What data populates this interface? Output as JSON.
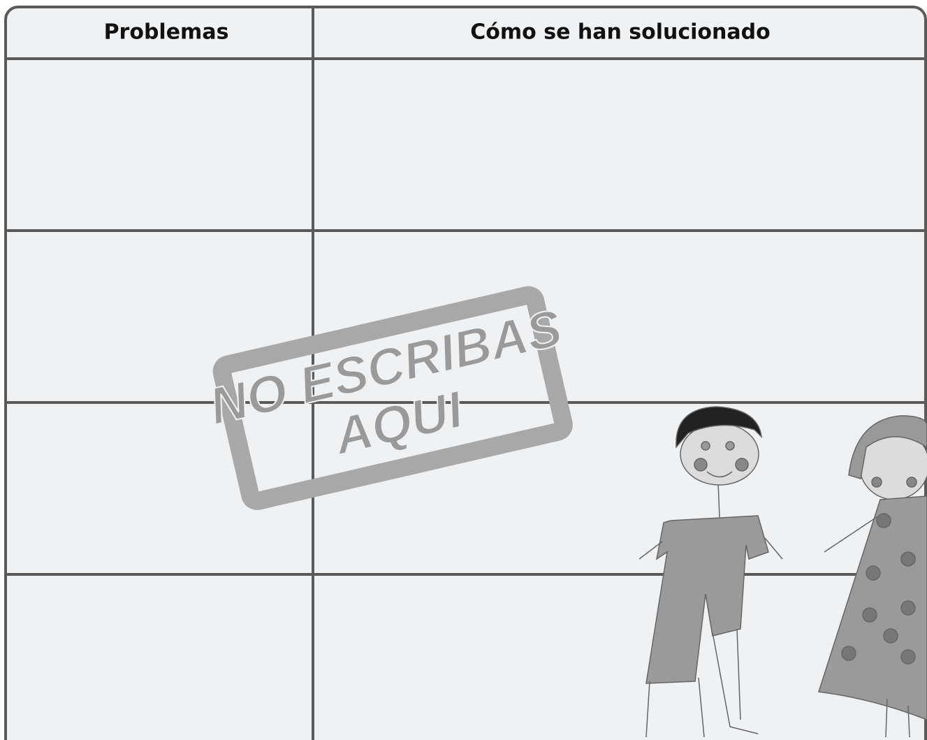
{
  "table": {
    "headers": [
      "Problemas",
      "Cómo se han solucionado"
    ]
  },
  "stamp": {
    "lines": [
      "NO ESCRIBAS",
      "AQUI"
    ]
  }
}
